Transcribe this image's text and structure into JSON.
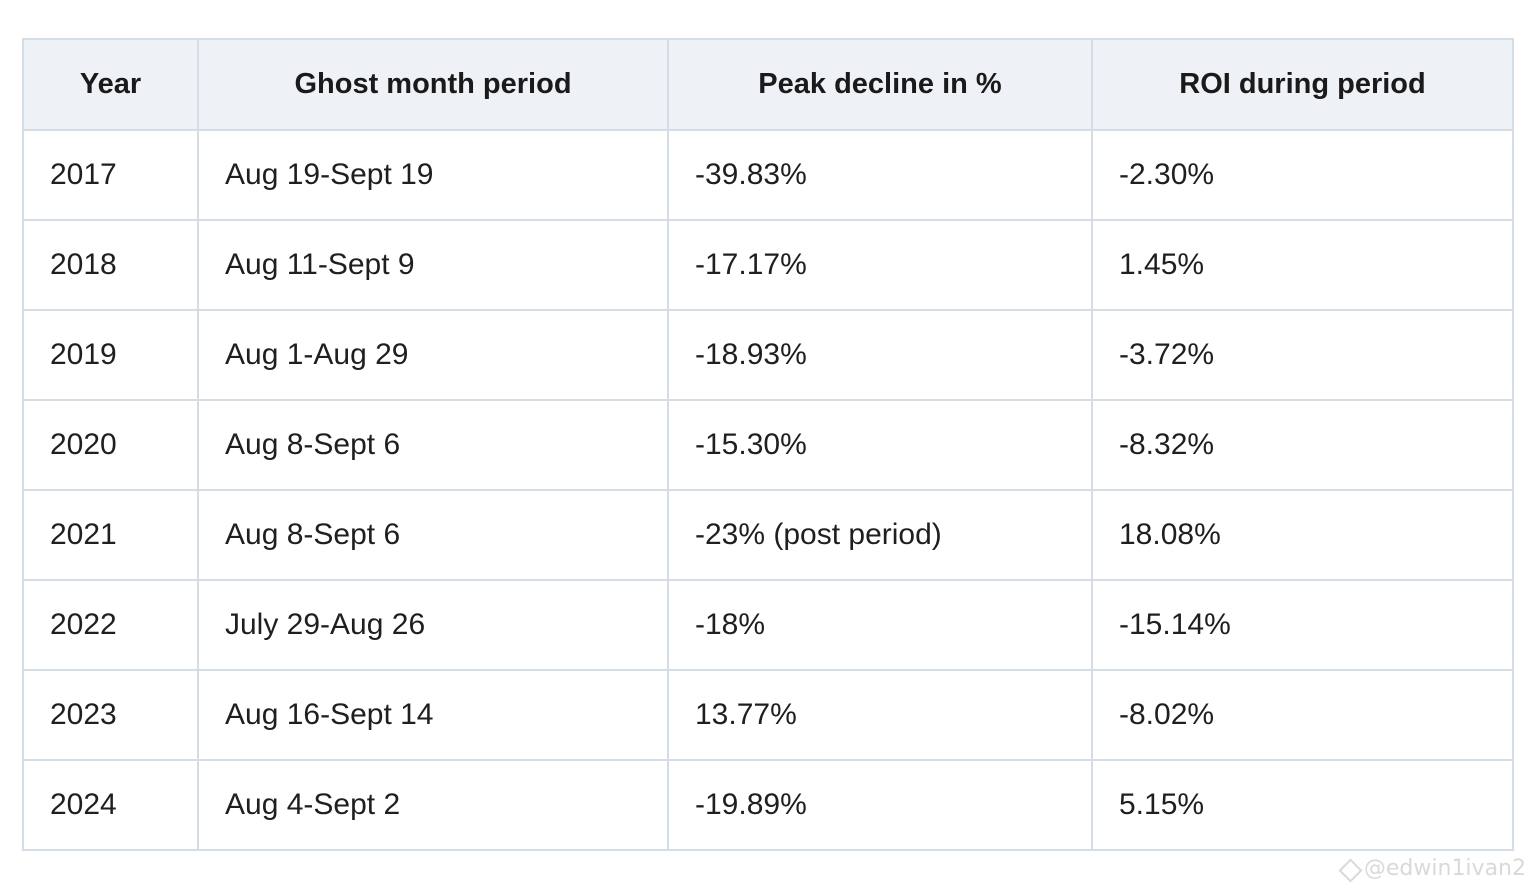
{
  "table": {
    "headers": [
      "Year",
      "Ghost month period",
      "Peak decline in %",
      "ROI during period"
    ],
    "rows": [
      [
        "2017",
        "Aug 19-Sept 19",
        "-39.83%",
        "-2.30%"
      ],
      [
        "2018",
        "Aug 11-Sept 9",
        "-17.17%",
        "1.45%"
      ],
      [
        "2019",
        "Aug 1-Aug 29",
        "-18.93%",
        "-3.72%"
      ],
      [
        "2020",
        "Aug 8-Sept 6",
        "-15.30%",
        "-8.32%"
      ],
      [
        "2021",
        "Aug 8-Sept 6",
        "-23% (post period)",
        "18.08%"
      ],
      [
        "2022",
        "July 29-Aug 26",
        "-18%",
        "-15.14%"
      ],
      [
        "2023",
        "Aug 16-Sept 14",
        "13.77%",
        "-8.02%"
      ],
      [
        "2024",
        "Aug 4-Sept 2",
        "-19.89%",
        "5.15%"
      ]
    ]
  },
  "watermark": {
    "text": "@edwin1ivan2",
    "icon": "binance-logo-icon"
  },
  "colors": {
    "header_bg": "#eef2f6",
    "border": "#d4dde6",
    "text": "#1f1f1f"
  }
}
